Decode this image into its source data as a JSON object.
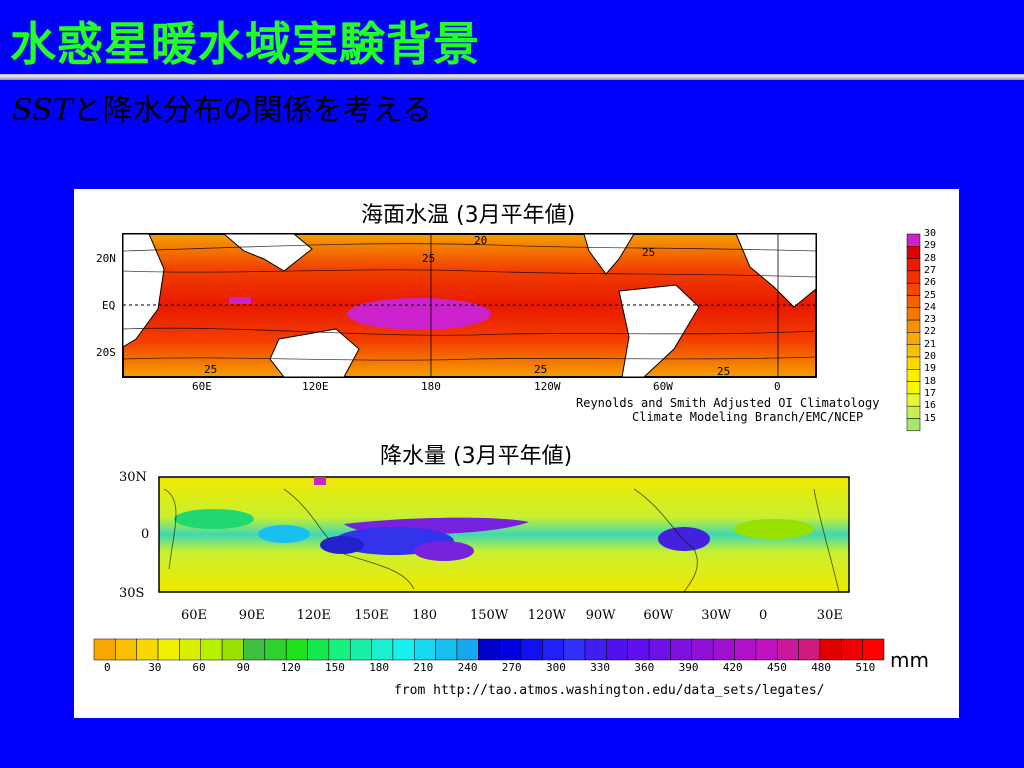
{
  "slide": {
    "title": "水惑星暖水域実験背景",
    "subtitle_latin": "SST",
    "subtitle_rest": "と降水分布の関係を考える"
  },
  "sst_map": {
    "title": "海面水温 (3月平年値)",
    "lat_labels": [
      "20N",
      "EQ",
      "20S"
    ],
    "lon_labels": [
      "60E",
      "120E",
      "180",
      "120W",
      "60W",
      "0"
    ],
    "contour_labels": [
      "20",
      "25",
      "25",
      "25",
      "25",
      "25"
    ],
    "credit_line1": "Reynolds and Smith Adjusted OI Climatology",
    "credit_line2": "Climate Modeling Branch/EMC/NCEP",
    "scale_labels": [
      "30",
      "29",
      "28",
      "27",
      "26",
      "25",
      "24",
      "23",
      "22",
      "21",
      "20",
      "19",
      "18",
      "17",
      "16",
      "15"
    ],
    "scale_colors": [
      "#cc22cc",
      "#e00000",
      "#ee1a00",
      "#f23000",
      "#f44800",
      "#f66000",
      "#f77800",
      "#f89000",
      "#f9a800",
      "#fac000",
      "#fbd800",
      "#fcee00",
      "#f6f800",
      "#e6f830",
      "#c8f050",
      "#a8e868"
    ]
  },
  "precip_map": {
    "title": "降水量 (3月平年値)",
    "lat_labels": [
      "30N",
      "0",
      "30S"
    ],
    "lon_labels": [
      "60E",
      "90E",
      "120E",
      "150E",
      "180",
      "150W",
      "120W",
      "90W",
      "60W",
      "30W",
      "0",
      "30E"
    ],
    "scale_labels": [
      "0",
      "30",
      "60",
      "90",
      "120",
      "150",
      "180",
      "210",
      "240",
      "270",
      "300",
      "330",
      "360",
      "390",
      "420",
      "450",
      "480",
      "510"
    ],
    "unit": "mm",
    "source": "from http://tao.atmos.washington.edu/data_sets/legates/",
    "scale_colors": [
      "#f6a800",
      "#f8c000",
      "#f8d800",
      "#f0f000",
      "#d8f000",
      "#b8f000",
      "#98e000",
      "#40c040",
      "#30d030",
      "#20e020",
      "#18e850",
      "#18f080",
      "#18f0a8",
      "#18f0d0",
      "#18f0f0",
      "#18d8f0",
      "#18c0f0",
      "#18a8f0",
      "#0000cc",
      "#0000e0",
      "#1010f0",
      "#2020f8",
      "#3030f8",
      "#4020f0",
      "#5010f0",
      "#6010f0",
      "#7010e8",
      "#8010e0",
      "#9010d8",
      "#a010d0",
      "#b010c8",
      "#c010c0",
      "#c818a0",
      "#d01880",
      "#e00000",
      "#f00000",
      "#ff0000"
    ]
  }
}
